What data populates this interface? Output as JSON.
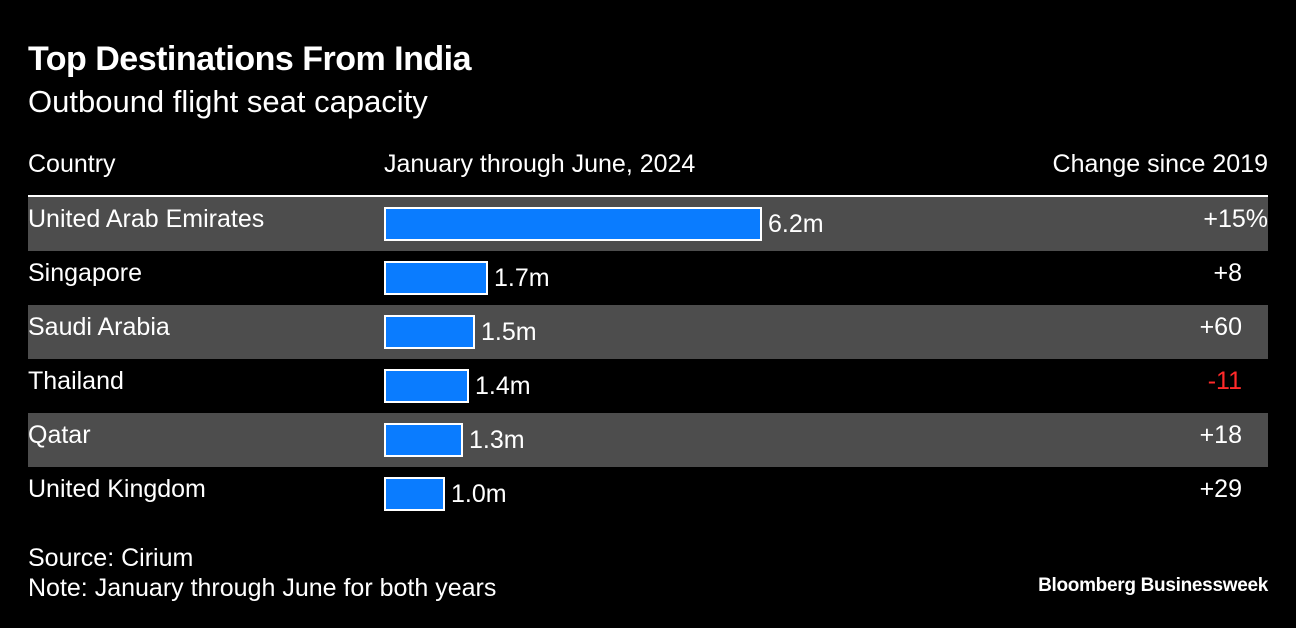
{
  "chart_data": {
    "type": "bar",
    "orientation": "horizontal",
    "title": "Top Destinations From India",
    "subtitle": "Outbound flight seat capacity",
    "columns": {
      "country": "Country",
      "period": "January through June, 2024",
      "change": "Change since 2019"
    },
    "unit": "million seats",
    "xlim": [
      0,
      6.2
    ],
    "categories": [
      "United Arab Emirates",
      "Singapore",
      "Saudi Arabia",
      "Thailand",
      "Qatar",
      "United Kingdom"
    ],
    "values": [
      6.2,
      1.7,
      1.5,
      1.4,
      1.3,
      1.0
    ],
    "value_labels": [
      "6.2m",
      "1.7m",
      "1.5m",
      "1.4m",
      "1.3m",
      "1.0m"
    ],
    "change_values": [
      15,
      8,
      60,
      -11,
      18,
      29
    ],
    "change_labels": [
      "+15%",
      "+8",
      "+60",
      "-11",
      "+18",
      "+29"
    ],
    "source": "Source: Cirium",
    "note": "Note: January through June for both years",
    "brand": "Bloomberg Businessweek",
    "colors": {
      "background": "#000000",
      "bar": "#0a7cff",
      "bar_border": "#ffffff",
      "row_shade": "#4d4d4d",
      "negative": "#ff2a2a",
      "text": "#ffffff"
    }
  }
}
